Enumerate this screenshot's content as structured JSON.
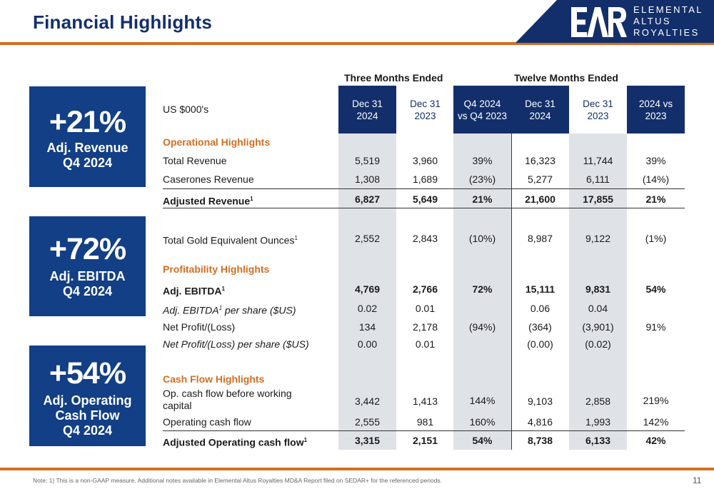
{
  "header": {
    "title": "Financial Highlights",
    "logo_lines": [
      "ELEMENTAL",
      "ALTUS",
      "ROYALTIES"
    ]
  },
  "kpis": [
    {
      "value": "+21%",
      "label_lines": [
        "Adj. Revenue",
        "Q4 2024"
      ]
    },
    {
      "value": "+72%",
      "label_lines": [
        "Adj. EBITDA",
        "Q4 2024"
      ]
    },
    {
      "value": "+54%",
      "label_lines": [
        "Adj. Operating",
        "Cash Flow",
        "Q4 2024"
      ]
    }
  ],
  "table": {
    "units": "US $000's",
    "groups": [
      "Three Months Ended",
      "Twelve Months Ended"
    ],
    "columns": [
      [
        "Dec 31",
        "2024"
      ],
      [
        "Dec 31",
        "2023"
      ],
      [
        "Q4 2024",
        "vs Q4 2023"
      ],
      [
        "Dec 31",
        "2024"
      ],
      [
        "Dec 31",
        "2023"
      ],
      [
        "2024 vs",
        "2023"
      ]
    ],
    "sections": {
      "operational": "Operational Highlights",
      "profitability": "Profitability Highlights",
      "cashflow": "Cash Flow Highlights"
    },
    "rows": {
      "total_revenue": {
        "label": "Total Revenue",
        "values": [
          "5,519",
          "3,960",
          "39%",
          "16,323",
          "11,744",
          "39%"
        ]
      },
      "caserones_revenue": {
        "label": "Caserones Revenue",
        "values": [
          "1,308",
          "1,689",
          "(23%)",
          "5,277",
          "6,111",
          "(14%)"
        ]
      },
      "adjusted_revenue": {
        "label": "Adjusted Revenue",
        "sup": "1",
        "values": [
          "6,827",
          "5,649",
          "21%",
          "21,600",
          "17,855",
          "21%"
        ]
      },
      "geo": {
        "label": "Total Gold Equivalent Ounces",
        "sup": "1",
        "values": [
          "2,552",
          "2,843",
          "(10%)",
          "8,987",
          "9,122",
          "(1%)"
        ]
      },
      "adj_ebitda": {
        "label": "Adj. EBITDA",
        "sup": "1",
        "values": [
          "4,769",
          "2,766",
          "72%",
          "15,111",
          "9,831",
          "54%"
        ]
      },
      "adj_ebitda_ps": {
        "label_pre": "Adj. EBITDA",
        "sup": "1",
        "label_post": " per share ($US)",
        "values": [
          "0.02",
          "0.01",
          "",
          "0.06",
          "0.04",
          ""
        ]
      },
      "net_profit": {
        "label": "Net Profit/(Loss)",
        "values": [
          "134",
          "2,178",
          "(94%)",
          "(364)",
          "(3,901)",
          "91%"
        ]
      },
      "net_profit_ps": {
        "label": "Net Profit/(Loss) per share ($US)",
        "values": [
          "0.00",
          "0.01",
          "",
          "(0.00)",
          "(0.02)",
          ""
        ]
      },
      "op_cf_before_wc": {
        "label_lines": [
          "Op. cash flow before working",
          "capital"
        ],
        "values": [
          "3,442",
          "1,413",
          "144%",
          "9,103",
          "2,858",
          "219%"
        ]
      },
      "op_cf": {
        "label": "Operating cash flow",
        "values": [
          "2,555",
          "981",
          "160%",
          "4,816",
          "1,993",
          "142%"
        ]
      },
      "adj_op_cf": {
        "label": "Adjusted Operating cash flow",
        "sup": "1",
        "values": [
          "3,315",
          "2,151",
          "54%",
          "8,738",
          "6,133",
          "42%"
        ]
      }
    }
  },
  "footer": {
    "note": "Note: 1) This is a non-GAAP measure. Additional notes available in Elemental Altus Royalties MD&A Report filed on SEDAR+ for the referenced periods.",
    "page_number": "11"
  },
  "colors": {
    "navy": "#132f6b",
    "kpi_blue": "#123f85",
    "orange": "#d46e22",
    "band_gray": "#dfe3e8"
  }
}
